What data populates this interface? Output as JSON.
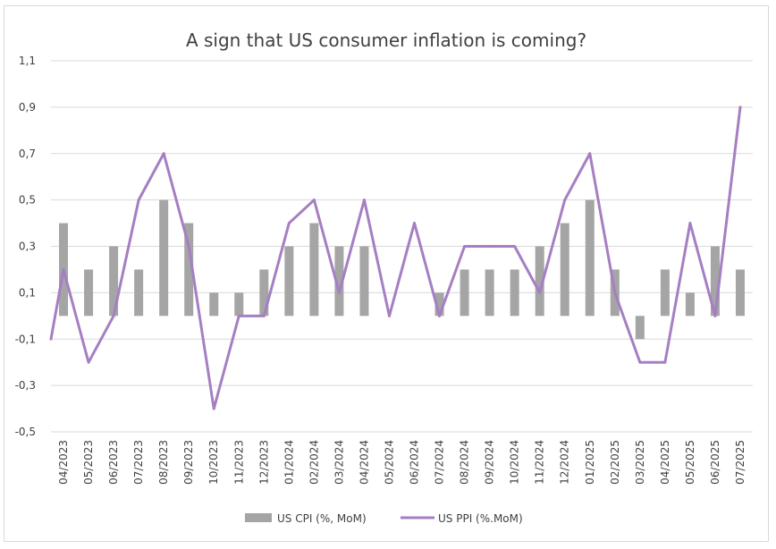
{
  "chart_data": {
    "type": "bar+line",
    "title": "A sign that US consumer inflation is coming?",
    "categories": [
      "04/2023",
      "05/2023",
      "06/2023",
      "07/2023",
      "08/2023",
      "09/2023",
      "10/2023",
      "11/2023",
      "12/2023",
      "01/2024",
      "02/2024",
      "03/2024",
      "04/2024",
      "05/2024",
      "06/2024",
      "07/2024",
      "08/2024",
      "09/2024",
      "10/2024",
      "11/2024",
      "12/2024",
      "01/2025",
      "02/2025",
      "03/2025",
      "04/2025",
      "05/2025",
      "06/2025",
      "07/2025"
    ],
    "series": [
      {
        "name": "US CPI  (%, MoM)",
        "type": "bar",
        "color": "#a5a5a5",
        "values": [
          0.4,
          0.2,
          0.3,
          0.2,
          0.5,
          0.4,
          0.1,
          0.1,
          0.2,
          0.3,
          0.4,
          0.3,
          0.3,
          0.0,
          0.0,
          0.1,
          0.2,
          0.2,
          0.2,
          0.3,
          0.4,
          0.5,
          0.2,
          -0.1,
          0.2,
          0.1,
          0.3,
          0.2
        ]
      },
      {
        "name": "US PPI (%.MoM)",
        "type": "line",
        "color": "#a57fc2",
        "start_value": -0.1,
        "values": [
          0.2,
          -0.2,
          0.0,
          0.5,
          0.7,
          0.3,
          -0.4,
          0.0,
          0.0,
          0.4,
          0.5,
          0.1,
          0.5,
          0.0,
          0.4,
          0.0,
          0.3,
          0.3,
          0.3,
          0.1,
          0.5,
          0.7,
          0.1,
          -0.2,
          -0.2,
          0.4,
          0.0,
          0.9
        ]
      }
    ],
    "y_ticks": [
      "1,1",
      "0,9",
      "0,7",
      "0,5",
      "0,3",
      "0,1",
      "-0,1",
      "-0,3",
      "-0,5"
    ],
    "ylim": [
      -0.5,
      1.1
    ],
    "grid": true,
    "legend_position": "bottom"
  }
}
